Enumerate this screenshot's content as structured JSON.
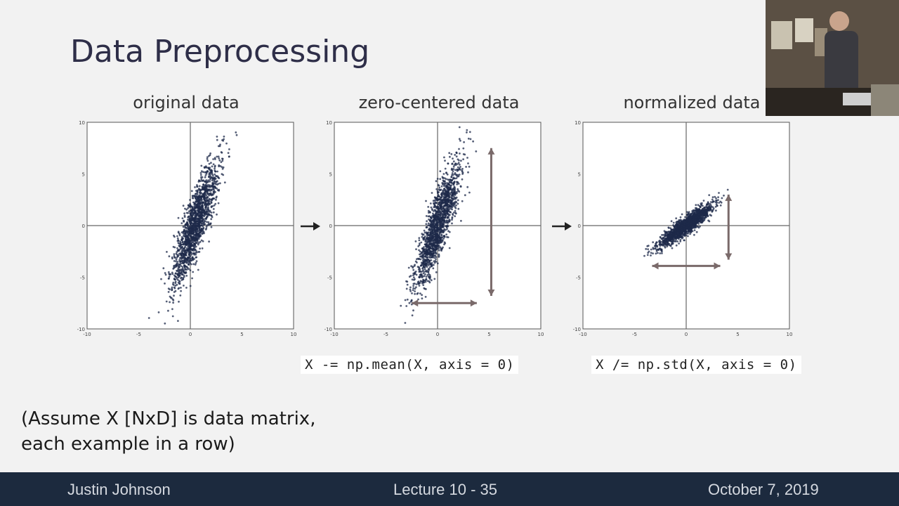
{
  "slide": {
    "title": "Data Preprocessing",
    "note_line1": "(Assume X [NxD] is data matrix,",
    "note_line2": "each example in a row)"
  },
  "panels": [
    {
      "title": "original data"
    },
    {
      "title": "zero-centered data",
      "code": "X -= np.mean(X, axis = 0)"
    },
    {
      "title": "normalized data",
      "code": "X /= np.std(X, axis = 0)"
    }
  ],
  "footer": {
    "author": "Justin Johnson",
    "lecture": "Lecture 10 - 35",
    "date": "October 7, 2019"
  },
  "colors": {
    "points": "#1e2a4a",
    "footer_bg": "#1c2a3e",
    "double_arrow": "#7a6a6a"
  },
  "chart_data": [
    {
      "type": "scatter",
      "title": "original data",
      "xlim": [
        -10,
        10
      ],
      "ylim": [
        -10,
        10
      ],
      "xticks": [
        "-10",
        "-5",
        "0",
        "5",
        "10"
      ],
      "yticks": [
        "10",
        "5",
        "0",
        "-5",
        "-10"
      ],
      "center": [
        0.5,
        0.2
      ],
      "stretch_major": 3.2,
      "stretch_minor": 0.55,
      "angle_deg": 72
    },
    {
      "type": "scatter",
      "title": "zero-centered data",
      "xlim": [
        -10,
        10
      ],
      "ylim": [
        -10,
        10
      ],
      "xticks": [
        "-10",
        "-5",
        "0",
        "5",
        "10"
      ],
      "yticks": [
        "10",
        "5",
        "0",
        "-5",
        "-10"
      ],
      "center": [
        0,
        0
      ],
      "stretch_major": 3.2,
      "stretch_minor": 0.55,
      "angle_deg": 72
    },
    {
      "type": "scatter",
      "title": "normalized data",
      "xlim": [
        -10,
        10
      ],
      "ylim": [
        -10,
        10
      ],
      "xticks": [
        "-10",
        "-5",
        "0",
        "5",
        "10"
      ],
      "yticks": [
        "10",
        "5",
        "0",
        "-5",
        "-10"
      ],
      "center": [
        0,
        0
      ],
      "stretch_major": 1.6,
      "stretch_minor": 0.35,
      "angle_deg": 38
    }
  ]
}
